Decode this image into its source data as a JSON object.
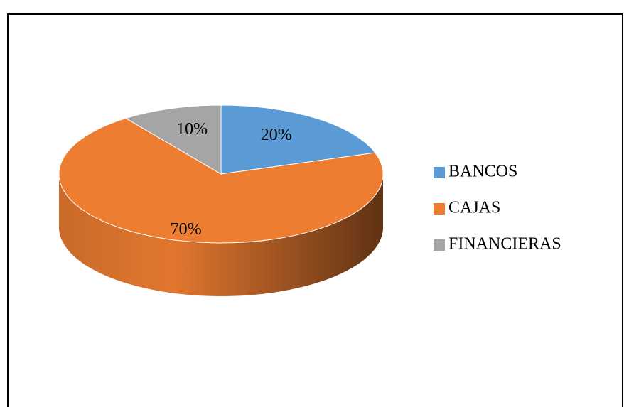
{
  "chart_data": {
    "type": "pie",
    "categories": [
      "BANCOS",
      "CAJAS",
      "FINANCIERAS"
    ],
    "values": [
      20,
      70,
      10
    ],
    "value_labels": [
      "20%",
      "70%",
      "10%"
    ],
    "colors": [
      "#5b9bd5",
      "#ed7d31",
      "#a5a5a5"
    ],
    "legend": "right"
  }
}
